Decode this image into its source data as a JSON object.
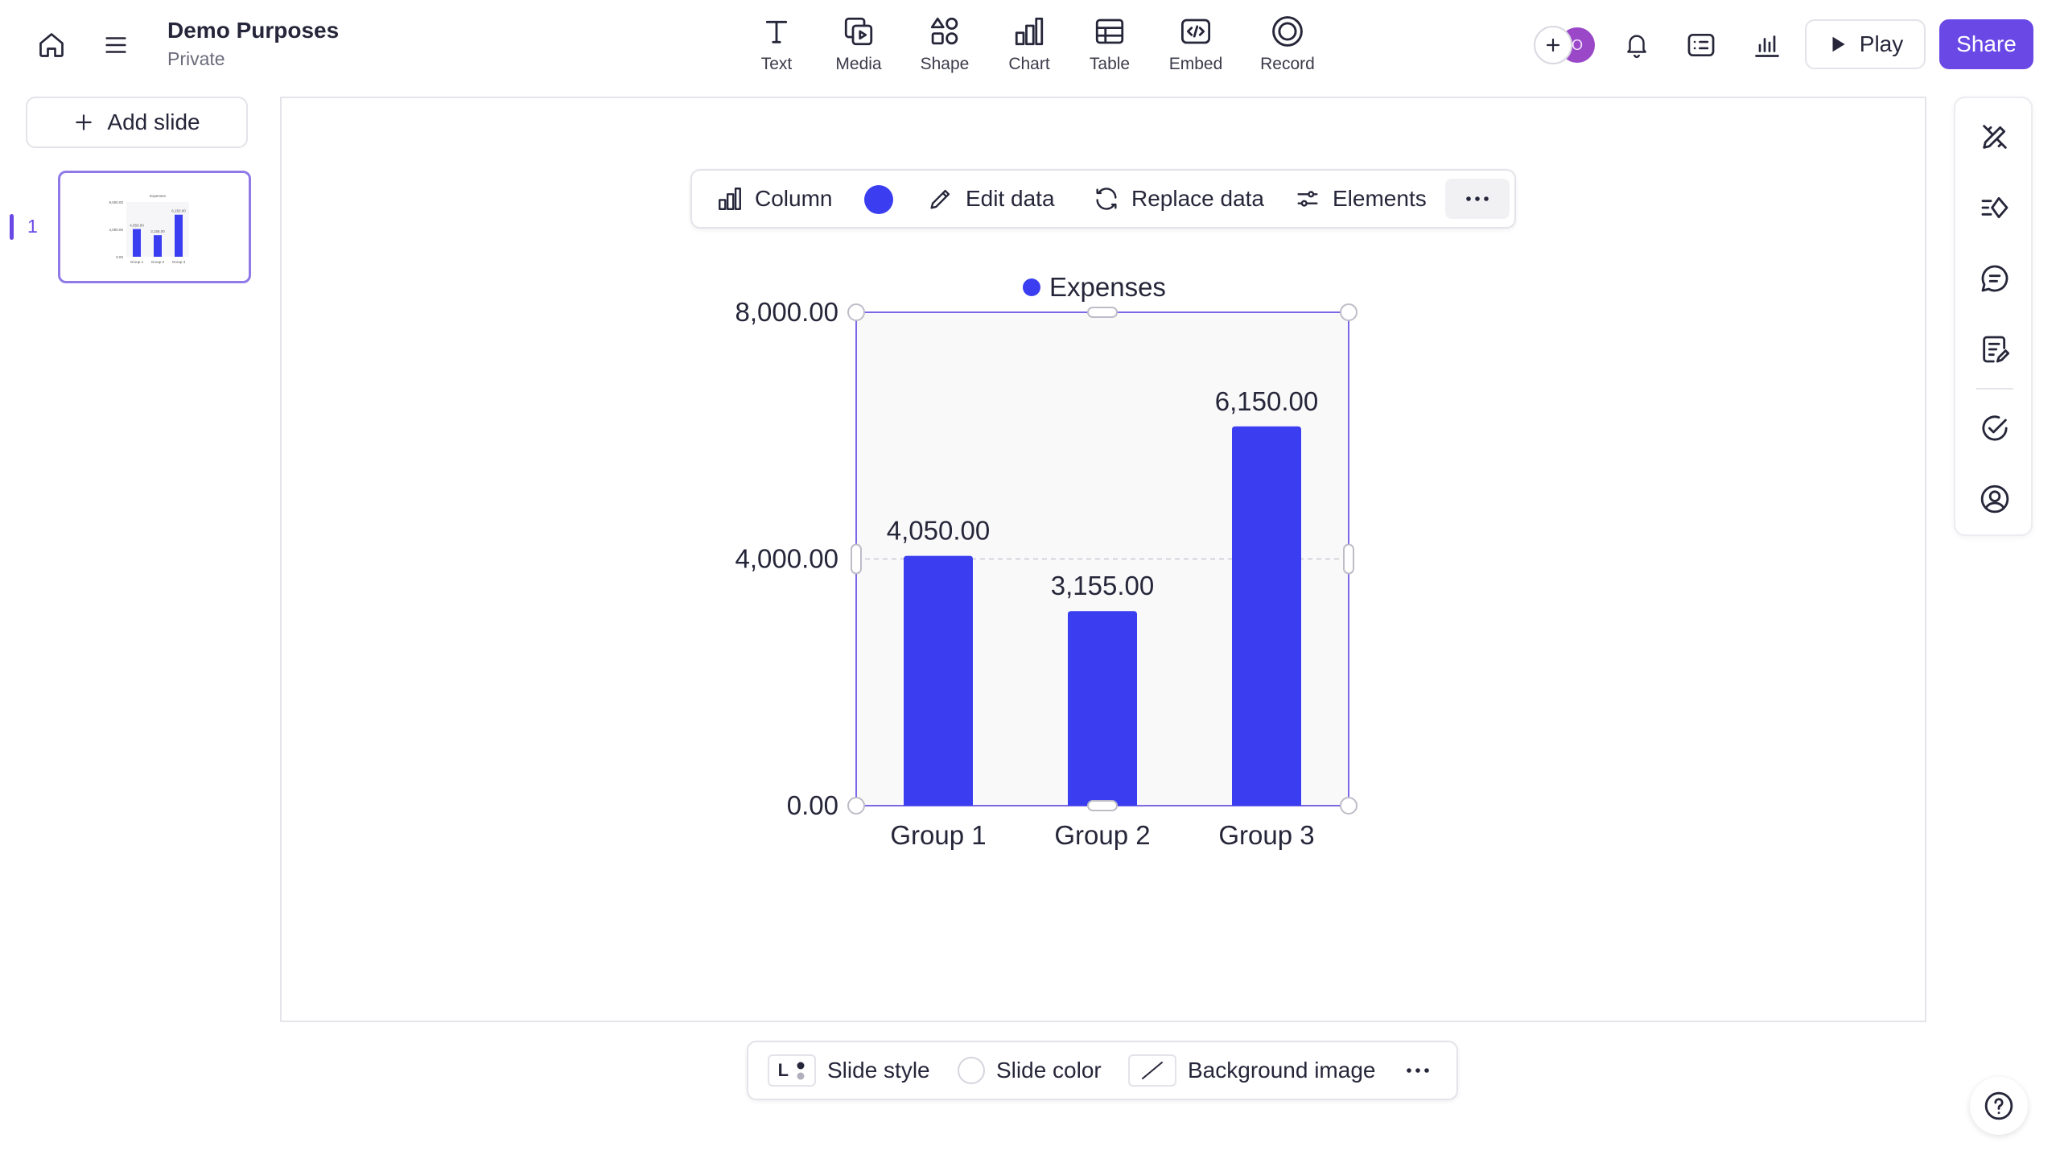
{
  "header": {
    "title": "Demo Purposes",
    "subtitle": "Private",
    "avatar_initial": "O",
    "play_label": "Play",
    "share_label": "Share"
  },
  "tools": [
    {
      "label": "Text",
      "icon": "text-icon"
    },
    {
      "label": "Media",
      "icon": "media-icon"
    },
    {
      "label": "Shape",
      "icon": "shape-icon"
    },
    {
      "label": "Chart",
      "icon": "chart-icon"
    },
    {
      "label": "Table",
      "icon": "table-icon"
    },
    {
      "label": "Embed",
      "icon": "embed-icon"
    },
    {
      "label": "Record",
      "icon": "record-icon"
    }
  ],
  "sidebar": {
    "add_slide_label": "Add slide",
    "slides": [
      {
        "number": "1"
      }
    ]
  },
  "chart_toolbar": {
    "type_label": "Column",
    "series_color": "#3a3ef0",
    "edit_label": "Edit data",
    "replace_label": "Replace data",
    "elements_label": "Elements"
  },
  "bottom_bar": {
    "style_badge": "L",
    "slide_style_label": "Slide style",
    "slide_color_label": "Slide color",
    "background_label": "Background image"
  },
  "colors": {
    "accent": "#6a48e6",
    "bar": "#3a3ef0"
  },
  "chart_data": {
    "type": "bar",
    "categories": [
      "Group 1",
      "Group 2",
      "Group 3"
    ],
    "series": [
      {
        "name": "Expenses",
        "values": [
          4050,
          3155,
          6150
        ],
        "color": "#3a3ef0"
      }
    ],
    "data_labels": [
      "4,050.00",
      "3,155.00",
      "6,150.00"
    ],
    "ylim": [
      0,
      8000
    ],
    "yticks": [
      0,
      4000,
      8000
    ],
    "ytick_labels": [
      "0.00",
      "4,000.00",
      "8,000.00"
    ],
    "legend_position": "top",
    "grid": "dashed at midpoint"
  }
}
